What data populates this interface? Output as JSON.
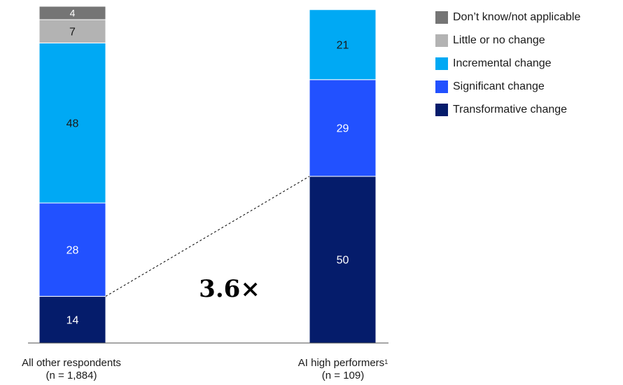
{
  "chart_data": {
    "type": "bar",
    "stacked": true,
    "categories": [
      {
        "label": "All other respondents",
        "n_label": "(n = 1,884)",
        "footnote": ""
      },
      {
        "label": "AI high performers",
        "n_label": "(n = 109)",
        "footnote": "1"
      }
    ],
    "series": [
      {
        "name": "Transformative change",
        "color": "#051c6b",
        "values": [
          14,
          50
        ],
        "label_color": "#ffffff"
      },
      {
        "name": "Significant change",
        "color": "#2251ff",
        "values": [
          28,
          29
        ],
        "label_color": "#ffffff"
      },
      {
        "name": "Incremental change",
        "color": "#00a9f4",
        "values": [
          48,
          21
        ],
        "label_color": "#1a1a1a"
      },
      {
        "name": "Little or no change",
        "color": "#b3b3b3",
        "values": [
          7,
          null
        ],
        "label_color": "#1a1a1a"
      },
      {
        "name": "Don’t know/not applicable",
        "color": "#757575",
        "values": [
          4,
          null
        ],
        "label_color": "#ffffff"
      }
    ],
    "ylim": [
      0,
      101
    ],
    "legend_position": "top-right",
    "annotation": "3.6×"
  }
}
